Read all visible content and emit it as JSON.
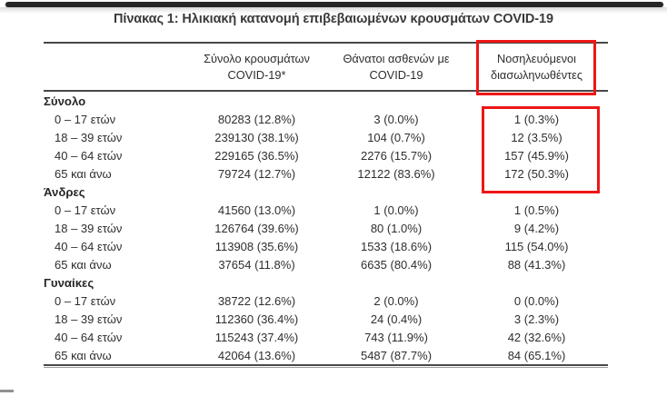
{
  "page": {
    "title": "Πίνακας 1: Ηλικιακή κατανομή επιβεβαιωμένων κρουσμάτων COVID-19"
  },
  "table": {
    "columns": [
      {
        "line1": "Σύνολο κρουσμάτων",
        "line2": "COVID-19*"
      },
      {
        "line1": "Θάνατοι ασθενών με",
        "line2": "COVID-19"
      },
      {
        "line1": "Νοσηλευόμενοι",
        "line2": "διασωληνωθέντες"
      }
    ],
    "sections": [
      {
        "label": "Σύνολο",
        "rows": [
          {
            "age": "0 – 17 ετών",
            "cases": "80283 (12.8%)",
            "deaths": "3 (0.0%)",
            "intubated": "1 (0.3%)"
          },
          {
            "age": "18 – 39 ετών",
            "cases": "239130 (38.1%)",
            "deaths": "104 (0.7%)",
            "intubated": "12 (3.5%)"
          },
          {
            "age": "40 – 64 ετών",
            "cases": "229165 (36.5%)",
            "deaths": "2276 (15.7%)",
            "intubated": "157 (45.9%)"
          },
          {
            "age": "65 και άνω",
            "cases": "79724 (12.7%)",
            "deaths": "12122 (83.6%)",
            "intubated": "172 (50.3%)"
          }
        ]
      },
      {
        "label": "Άνδρες",
        "rows": [
          {
            "age": "0 – 17 ετών",
            "cases": "41560 (13.0%)",
            "deaths": "1 (0.0%)",
            "intubated": "1 (0.5%)"
          },
          {
            "age": "18 – 39 ετών",
            "cases": "126764 (39.6%)",
            "deaths": "80 (1.0%)",
            "intubated": "9 (4.2%)"
          },
          {
            "age": "40 – 64 ετών",
            "cases": "113908 (35.6%)",
            "deaths": "1533 (18.6%)",
            "intubated": "115 (54.0%)"
          },
          {
            "age": "65 και άνω",
            "cases": "37654 (11.8%)",
            "deaths": "6635 (80.4%)",
            "intubated": "88 (41.3%)"
          }
        ]
      },
      {
        "label": "Γυναίκες",
        "rows": [
          {
            "age": "0 – 17 ετών",
            "cases": "38722 (12.6%)",
            "deaths": "2 (0.0%)",
            "intubated": "0 (0.0%)"
          },
          {
            "age": "18 – 39 ετών",
            "cases": "112360 (36.4%)",
            "deaths": "24 (0.4%)",
            "intubated": "3 (2.3%)"
          },
          {
            "age": "40 – 64 ετών",
            "cases": "115243 (37.4%)",
            "deaths": "743 (11.9%)",
            "intubated": "42 (32.6%)"
          },
          {
            "age": "65 και άνω",
            "cases": "42064 (13.6%)",
            "deaths": "5487 (87.7%)",
            "intubated": "84 (65.1%)"
          }
        ]
      }
    ]
  },
  "annotations": {
    "highlight_color": "#ee1616",
    "highlighted_column": "Νοσηλευόμενοι διασωληνωθέντες",
    "highlighted_section": "Σύνολο"
  }
}
